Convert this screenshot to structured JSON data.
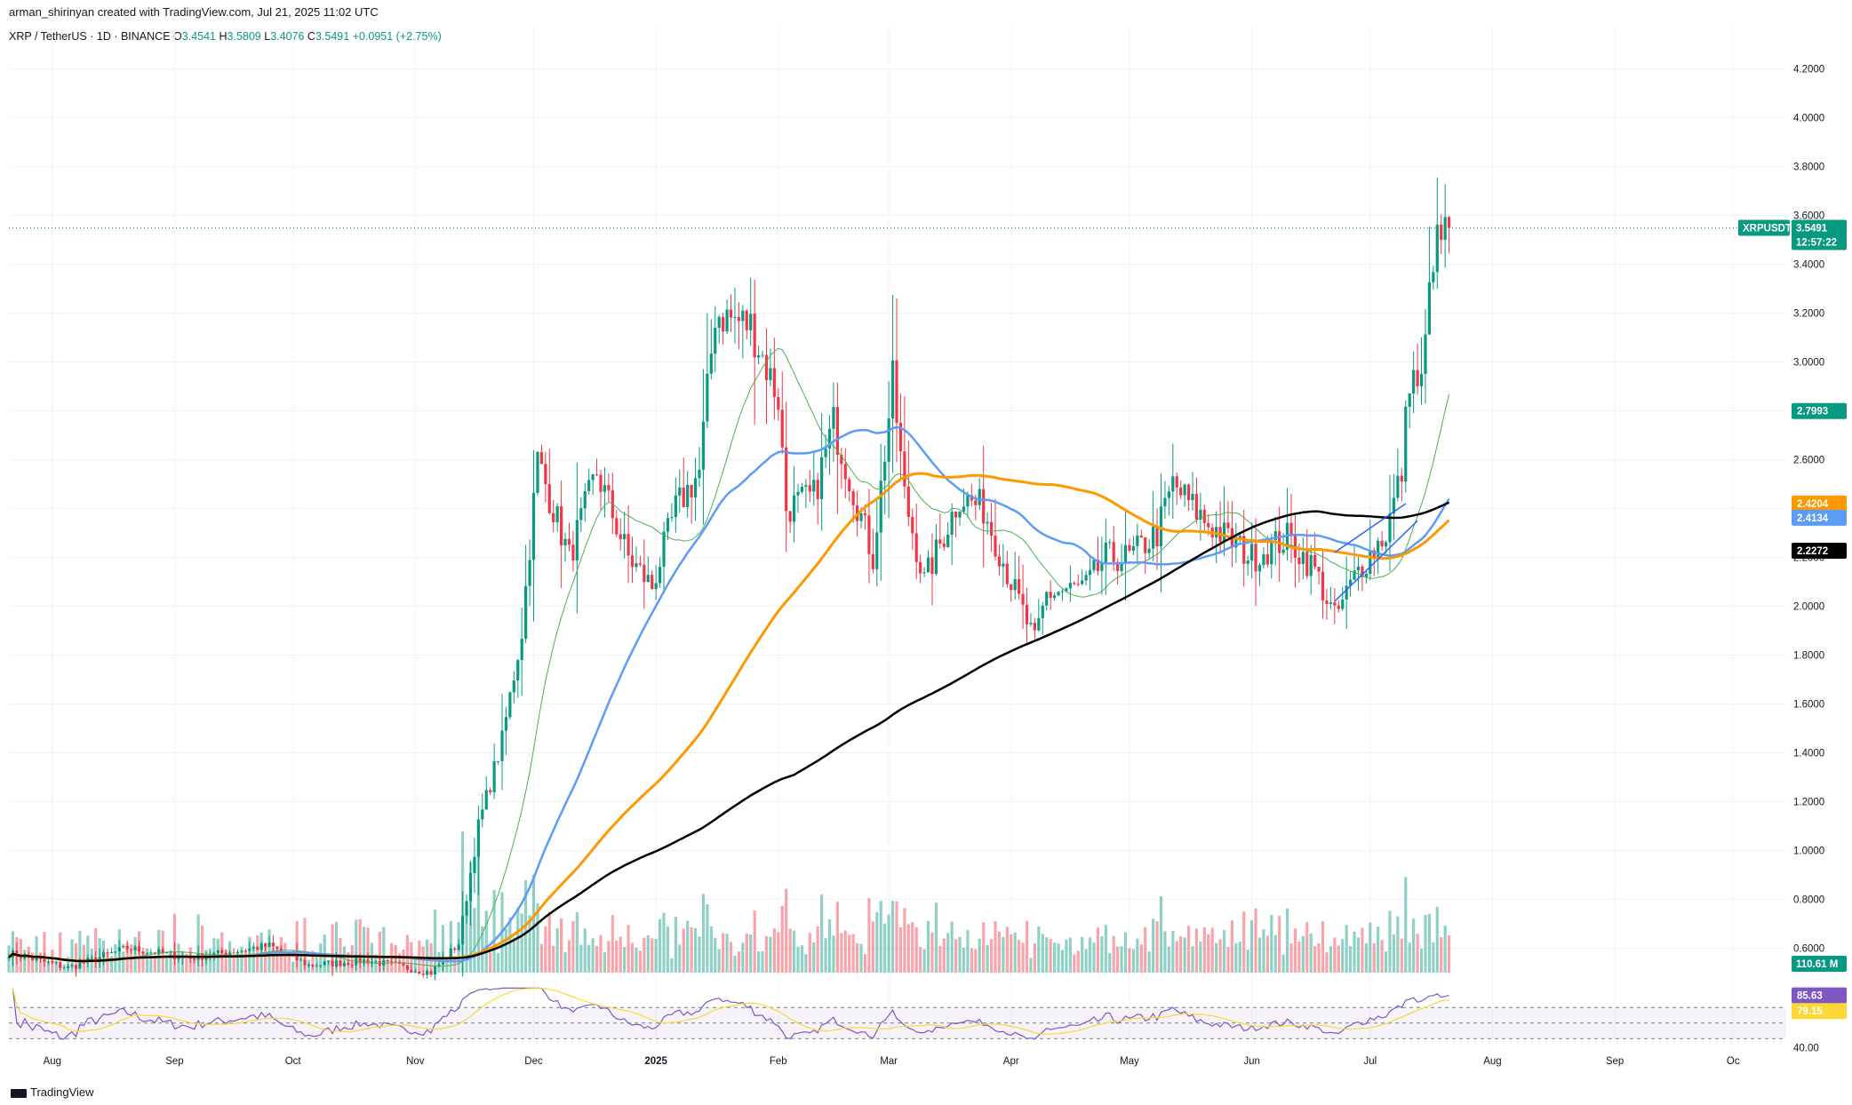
{
  "header": {
    "credit": "arman_shirinyan created with TradingView.com, Jul 21, 2025 11:02 UTC",
    "symbol": "XRP / TetherUS · 1D · BINANCE",
    "open_label": "O",
    "open": "3.4541",
    "high_label": "H",
    "high": "3.5809",
    "low_label": "L",
    "low": "3.4076",
    "close_label": "C",
    "close": "3.5491",
    "change": "+0.0951 (+2.75%)"
  },
  "footer": {
    "logo_text": "TradingView"
  },
  "colors": {
    "up": "#089981",
    "down": "#f23645",
    "ma_short": "#4caf50",
    "ma_blue": "#5b9cf6",
    "ma_orange": "#ff9800",
    "ma_black": "#000000",
    "rsi": "#7e57c2",
    "rsi_ma": "#fdd835"
  },
  "chart_data": {
    "type": "candlestick",
    "symbol": "XRPUSDT",
    "y_range": [
      0.5,
      4.3
    ],
    "y_ticks": [
      "4.2000",
      "4.0000",
      "3.8000",
      "3.6000",
      "3.4000",
      "3.2000",
      "3.0000",
      "2.8000",
      "2.6000",
      "2.4000",
      "2.2000",
      "2.0000",
      "1.8000",
      "1.6000",
      "1.4000",
      "1.2000",
      "1.0000",
      "0.8000",
      "0.6000"
    ],
    "x_labels": [
      "Aug",
      "Sep",
      "Oct",
      "Nov",
      "Dec",
      "2025",
      "Feb",
      "Mar",
      "Apr",
      "May",
      "Jun",
      "Jul",
      "Aug",
      "Sep",
      "Oc"
    ],
    "price_anchors": [
      [
        "2024-07-21",
        0.58
      ],
      [
        "2024-08-05",
        0.52
      ],
      [
        "2024-08-20",
        0.6
      ],
      [
        "2024-09-05",
        0.56
      ],
      [
        "2024-09-25",
        0.61
      ],
      [
        "2024-10-05",
        0.53
      ],
      [
        "2024-10-20",
        0.55
      ],
      [
        "2024-11-05",
        0.5
      ],
      [
        "2024-11-12",
        0.62
      ],
      [
        "2024-11-17",
        1.1
      ],
      [
        "2024-11-23",
        1.45
      ],
      [
        "2024-11-28",
        1.9
      ],
      [
        "2024-12-02",
        2.6
      ],
      [
        "2024-12-05",
        2.45
      ],
      [
        "2024-12-10",
        2.2
      ],
      [
        "2024-12-17",
        2.55
      ],
      [
        "2024-12-25",
        2.2
      ],
      [
        "2024-12-31",
        2.08
      ],
      [
        "2025-01-06",
        2.4
      ],
      [
        "2025-01-12",
        2.55
      ],
      [
        "2025-01-16",
        3.2
      ],
      [
        "2025-01-25",
        3.15
      ],
      [
        "2025-02-01",
        2.85
      ],
      [
        "2025-02-03",
        2.4
      ],
      [
        "2025-02-10",
        2.45
      ],
      [
        "2025-02-15",
        2.75
      ],
      [
        "2025-02-25",
        2.2
      ],
      [
        "2025-03-02",
        2.92
      ],
      [
        "2025-03-05",
        2.45
      ],
      [
        "2025-03-10",
        2.1
      ],
      [
        "2025-03-19",
        2.45
      ],
      [
        "2025-03-25",
        2.4
      ],
      [
        "2025-04-01",
        2.1
      ],
      [
        "2025-04-07",
        1.85
      ],
      [
        "2025-04-10",
        2.05
      ],
      [
        "2025-04-20",
        2.08
      ],
      [
        "2025-04-25",
        2.2
      ],
      [
        "2025-05-01",
        2.2
      ],
      [
        "2025-05-08",
        2.3
      ],
      [
        "2025-05-12",
        2.5
      ],
      [
        "2025-05-20",
        2.35
      ],
      [
        "2025-06-01",
        2.2
      ],
      [
        "2025-06-10",
        2.28
      ],
      [
        "2025-06-17",
        2.15
      ],
      [
        "2025-06-22",
        1.95
      ],
      [
        "2025-06-28",
        2.15
      ],
      [
        "2025-07-05",
        2.3
      ],
      [
        "2025-07-09",
        2.55
      ],
      [
        "2025-07-11",
        2.95
      ],
      [
        "2025-07-14",
        2.9
      ],
      [
        "2025-07-17",
        3.45
      ],
      [
        "2025-07-19",
        3.5
      ],
      [
        "2025-07-21",
        3.55
      ]
    ],
    "last_price": "3.5491",
    "countdown": "12:57:22",
    "symbol_tag": "XRPUSDT",
    "indicator_tags": [
      {
        "label": "2.7993",
        "value": 2.7993,
        "color": "#089981"
      },
      {
        "label": "2.4204",
        "value": 2.4204,
        "color": "#ff9800"
      },
      {
        "label": "2.4134",
        "value": 2.4134,
        "color": "#5b9cf6"
      },
      {
        "label": "2.2272",
        "value": 2.2272,
        "color": "#000000"
      }
    ],
    "volume_tag": "110.61 M",
    "rsi": {
      "value": "85.63",
      "ma_value": "79.15",
      "level_label": "40.00",
      "bands": [
        70,
        50,
        30
      ],
      "range": [
        20,
        100
      ]
    },
    "moving_averages": [
      {
        "color": "#4caf50",
        "period": 20,
        "width": 1
      },
      {
        "color": "#5b9cf6",
        "period": 50,
        "width": 2.5
      },
      {
        "color": "#ff9800",
        "period": 100,
        "width": 3
      },
      {
        "color": "#000000",
        "period": 200,
        "width": 2.5
      }
    ]
  }
}
